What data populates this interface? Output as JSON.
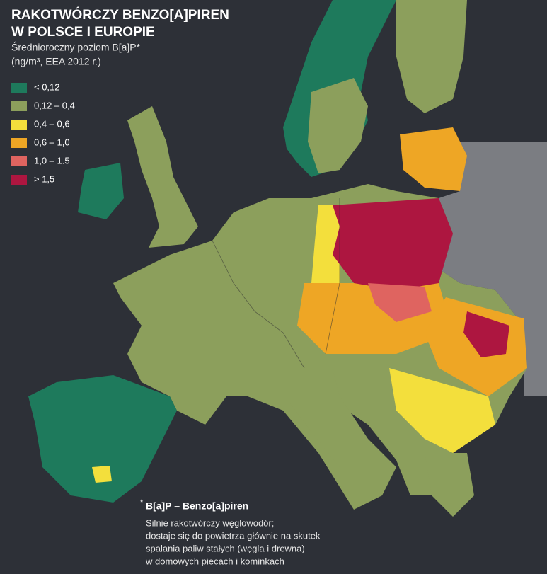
{
  "header": {
    "title": [
      "RAKOTWÓRCZY BENZO[A]PIREN",
      "W POLSCE I EUROPIE"
    ],
    "subtitle": [
      "Średnioroczny poziom B[a]P*",
      "(ng/m³, EEA 2012 r.)"
    ]
  },
  "legend": {
    "items": [
      {
        "label": "< 0,12",
        "color": "#1e7a5c"
      },
      {
        "label": "0,12 – 0,4",
        "color": "#8c9f5c"
      },
      {
        "label": "0,4 – 0,6",
        "color": "#f3df3c"
      },
      {
        "label": "0,6 – 1,0",
        "color": "#eea625"
      },
      {
        "label": "1,0 – 1.5",
        "color": "#df6460"
      },
      {
        "label": "> 1,5",
        "color": "#ad1640"
      }
    ]
  },
  "footnote": {
    "marker": "*",
    "term": "B[a]P – Benzo[a]piren",
    "lines": [
      "Silnie rakotwórczy węglowodór;",
      "dostaje się do powietrza głównie na skutek",
      "spalania paliw stałych (węgla i drewna)",
      "w domowych piecach i kominkach"
    ]
  }
}
